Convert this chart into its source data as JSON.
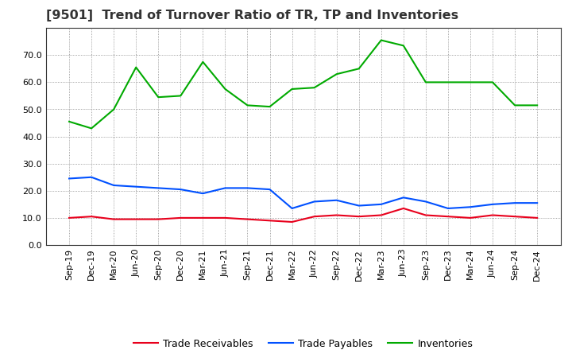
{
  "title": "[9501]  Trend of Turnover Ratio of TR, TP and Inventories",
  "x_labels": [
    "Sep-19",
    "Dec-19",
    "Mar-20",
    "Jun-20",
    "Sep-20",
    "Dec-20",
    "Mar-21",
    "Jun-21",
    "Sep-21",
    "Dec-21",
    "Mar-22",
    "Jun-22",
    "Sep-22",
    "Dec-22",
    "Mar-23",
    "Jun-23",
    "Sep-23",
    "Dec-23",
    "Mar-24",
    "Jun-24",
    "Sep-24",
    "Dec-24"
  ],
  "trade_receivables": [
    10.0,
    10.5,
    9.5,
    9.5,
    9.5,
    10.0,
    10.0,
    10.0,
    9.5,
    9.0,
    8.5,
    10.5,
    11.0,
    10.5,
    11.0,
    13.5,
    11.0,
    10.5,
    10.0,
    11.0,
    10.5,
    10.0
  ],
  "trade_payables": [
    24.5,
    25.0,
    22.0,
    21.5,
    21.0,
    20.5,
    19.0,
    21.0,
    21.0,
    20.5,
    13.5,
    16.0,
    16.5,
    14.5,
    15.0,
    17.5,
    16.0,
    13.5,
    14.0,
    15.0,
    15.5,
    15.5
  ],
  "inventories": [
    45.5,
    43.0,
    50.0,
    65.5,
    54.5,
    55.0,
    67.5,
    57.5,
    51.5,
    51.0,
    57.5,
    58.0,
    63.0,
    65.0,
    75.5,
    73.5,
    60.0,
    60.0,
    60.0,
    60.0,
    51.5,
    51.5
  ],
  "tr_color": "#e8001c",
  "tp_color": "#0050ff",
  "inv_color": "#00aa00",
  "ylim": [
    0.0,
    80.0
  ],
  "yticks": [
    0.0,
    10.0,
    20.0,
    30.0,
    40.0,
    50.0,
    60.0,
    70.0
  ],
  "legend_labels": [
    "Trade Receivables",
    "Trade Payables",
    "Inventories"
  ],
  "background_color": "#ffffff",
  "plot_bg_color": "#ffffff",
  "grid_color": "#888888",
  "title_fontsize": 11.5,
  "title_color": "#333333",
  "tick_fontsize": 8,
  "legend_fontsize": 9
}
